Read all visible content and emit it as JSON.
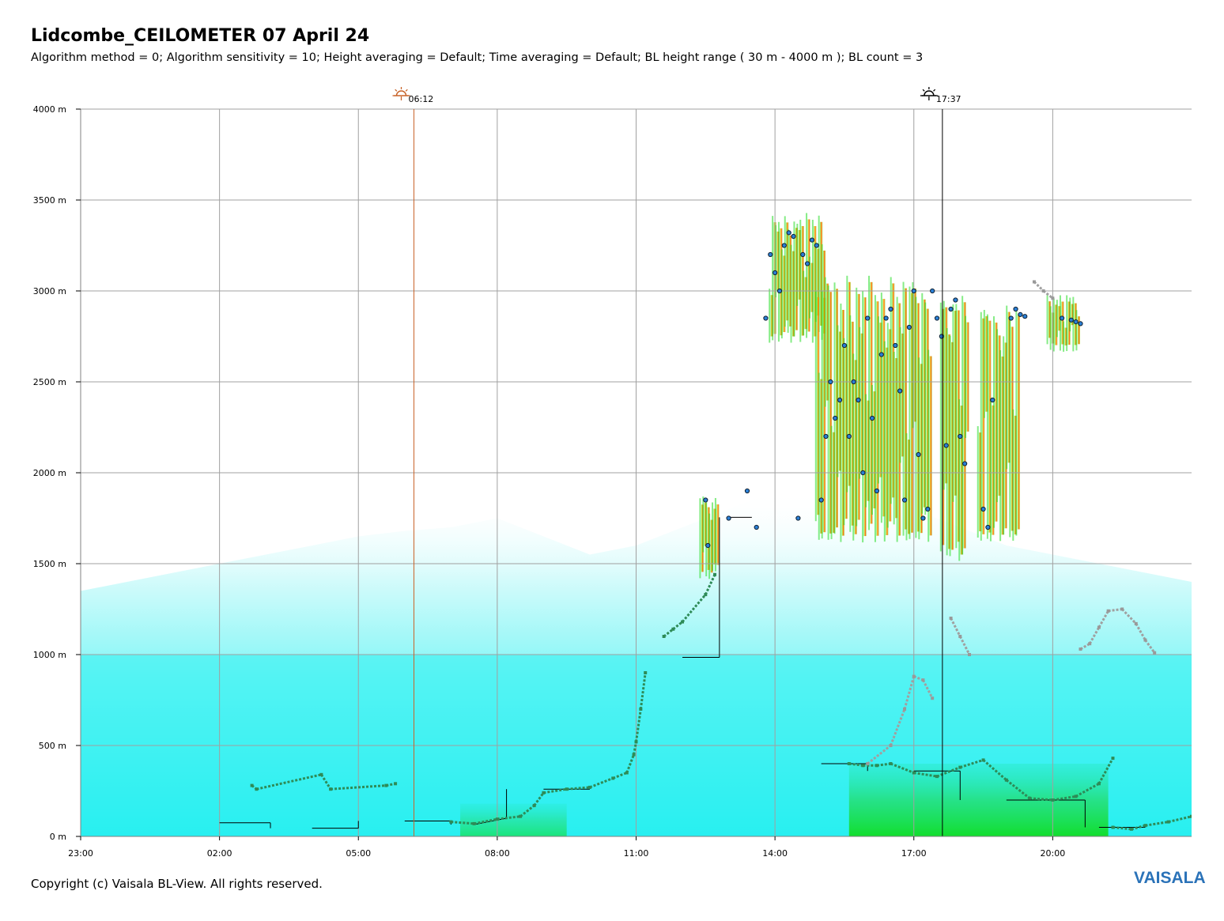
{
  "title": "Lidcombe_CEILOMETER 07 April 24",
  "subtitle": "Algorithm method = 0; Algorithm sensitivity = 10; Height averaging = Default; Time averaging = Default; BL height range ( 30 m - 4000 m ); BL count = 3",
  "copyright": "Copyright (c) Vaisala BL-View. All rights reserved.",
  "brand": "VAISALA",
  "colors": {
    "background_backscatter": "#33f2f2",
    "grid": "#a0a0a0",
    "sunrise_line": "#c8642a",
    "sunset_line": "#000000",
    "cloud_hits": "#2a7fd6",
    "bl_markers": "#2e8b57",
    "high_signal": "#ff2200",
    "mid_signal": "#22dd22"
  },
  "chart_data": {
    "type": "heatmap",
    "x_label_unit": "time (hours, starting 23:00 previous day)",
    "x_range": [
      -1,
      23
    ],
    "x_tick_values": [
      -1,
      2,
      5,
      8,
      11,
      14,
      17,
      20
    ],
    "x_tick_labels": [
      "23:00",
      "02:00",
      "05:00",
      "08:00",
      "11:00",
      "14:00",
      "17:00",
      "20:00"
    ],
    "y_range": [
      0,
      4000
    ],
    "y_tick_values": [
      0,
      500,
      1000,
      1500,
      2000,
      2500,
      3000,
      3500,
      4000
    ],
    "y_tick_labels": [
      "0 m",
      "500 m",
      "1000 m",
      "1500 m",
      "2000 m",
      "2500 m",
      "3000 m",
      "3500 m",
      "4000 m"
    ],
    "grid": true,
    "sunrise": {
      "time": 6.2,
      "label": "06:12",
      "icon": "sunrise-icon"
    },
    "sunset": {
      "time": 17.617,
      "label": "17:37",
      "icon": "sunset-icon"
    },
    "boundary_layer_height_steps": [
      {
        "x": 2.0,
        "y": 75
      },
      {
        "x": 3.1,
        "y": 75
      },
      {
        "x": 4.0,
        "y": 45
      },
      {
        "x": 5.0,
        "y": 45
      },
      {
        "x": 6.0,
        "y": 85
      },
      {
        "x": 7.0,
        "y": 85
      },
      {
        "x": 7.5,
        "y": 65
      },
      {
        "x": 8.2,
        "y": 100
      },
      {
        "x": 9.0,
        "y": 260
      },
      {
        "x": 10.0,
        "y": 260
      },
      {
        "x": 12.0,
        "y": 985
      },
      {
        "x": 12.8,
        "y": 985
      },
      {
        "x": 13.0,
        "y": 1755
      },
      {
        "x": 13.5,
        "y": 1755
      },
      {
        "x": 15.0,
        "y": 400
      },
      {
        "x": 16.0,
        "y": 400
      },
      {
        "x": 17.0,
        "y": 360
      },
      {
        "x": 18.0,
        "y": 360
      },
      {
        "x": 19.0,
        "y": 200
      },
      {
        "x": 20.7,
        "y": 200
      },
      {
        "x": 21.0,
        "y": 50
      },
      {
        "x": 22.0,
        "y": 50
      }
    ],
    "bl_marker_series": [
      {
        "x": [
          2.7,
          2.8,
          4.2,
          4.4,
          5.6,
          5.8
        ],
        "y": [
          280,
          260,
          340,
          260,
          280,
          290
        ]
      },
      {
        "x": [
          7.0,
          7.5,
          8.0,
          8.5,
          8.8,
          9.0,
          9.5,
          10.0,
          10.5,
          10.8,
          10.95,
          11.0,
          11.1,
          11.2
        ],
        "y": [
          80,
          70,
          95,
          110,
          170,
          240,
          260,
          270,
          320,
          350,
          450,
          520,
          700,
          900
        ]
      },
      {
        "x": [
          11.6,
          11.8,
          12.0,
          12.5,
          12.7
        ],
        "y": [
          1100,
          1140,
          1180,
          1330,
          1440
        ]
      },
      {
        "x": [
          15.6,
          15.9,
          16.2,
          16.5,
          17.0,
          17.5,
          18.0,
          18.5,
          19.0,
          19.5,
          20.0,
          20.5,
          21.0,
          21.3
        ],
        "y": [
          400,
          390,
          390,
          400,
          350,
          330,
          380,
          420,
          310,
          210,
          200,
          220,
          290,
          430
        ]
      },
      {
        "x": [
          21.3,
          21.7,
          22.0,
          22.5,
          23.0
        ],
        "y": [
          50,
          40,
          60,
          80,
          110
        ]
      }
    ],
    "residual_layer_series": [
      {
        "x": [
          16.0,
          16.5,
          16.8,
          17.0,
          17.2,
          17.4
        ],
        "y": [
          400,
          500,
          700,
          880,
          860,
          760
        ]
      },
      {
        "x": [
          17.8,
          18.0,
          18.2
        ],
        "y": [
          1200,
          1100,
          1000
        ]
      },
      {
        "x": [
          19.6,
          19.8,
          20.0
        ],
        "y": [
          3050,
          3000,
          2960
        ]
      },
      {
        "x": [
          20.6,
          20.8,
          21.0,
          21.2,
          21.5,
          21.8,
          22.0,
          22.2
        ],
        "y": [
          1030,
          1060,
          1150,
          1240,
          1250,
          1170,
          1080,
          1010
        ]
      }
    ],
    "cloud_base_points": {
      "x": [
        12.5,
        12.55,
        13.0,
        13.4,
        13.6,
        13.8,
        13.9,
        14.0,
        14.1,
        14.2,
        14.3,
        14.4,
        14.5,
        14.6,
        14.7,
        14.8,
        14.9,
        15.0,
        15.1,
        15.2,
        15.3,
        15.4,
        15.5,
        15.6,
        15.7,
        15.8,
        15.9,
        16.0,
        16.1,
        16.2,
        16.3,
        16.4,
        16.5,
        16.6,
        16.7,
        16.8,
        16.9,
        17.0,
        17.1,
        17.2,
        17.3,
        17.4,
        17.5,
        17.6,
        17.7,
        17.8,
        17.9,
        18.0,
        18.1,
        18.5,
        18.6,
        18.7,
        19.1,
        19.2,
        19.3,
        19.4,
        20.2,
        20.4,
        20.5,
        20.6
      ],
      "y": [
        1850,
        1600,
        1750,
        1900,
        1700,
        2850,
        3200,
        3100,
        3000,
        3250,
        3320,
        3300,
        1750,
        3200,
        3150,
        3280,
        3250,
        1850,
        2200,
        2500,
        2300,
        2400,
        2700,
        2200,
        2500,
        2400,
        2000,
        2850,
        2300,
        1900,
        2650,
        2850,
        2900,
        2700,
        2450,
        1850,
        2800,
        3000,
        2100,
        1750,
        1800,
        3000,
        2850,
        2750,
        2150,
        2900,
        2950,
        2200,
        2050,
        1800,
        1700,
        2400,
        2850,
        2900,
        2870,
        2860,
        2850,
        2840,
        2830,
        2820
      ]
    },
    "high_signal_regions": [
      {
        "x": [
          13.9,
          15.1
        ],
        "y": [
          2750,
          3400
        ]
      },
      {
        "x": [
          14.9,
          17.4
        ],
        "y": [
          1650,
          3050
        ]
      },
      {
        "x": [
          17.6,
          18.2
        ],
        "y": [
          1550,
          3000
        ]
      },
      {
        "x": [
          18.4,
          19.3
        ],
        "y": [
          1650,
          2900
        ]
      },
      {
        "x": [
          19.9,
          20.6
        ],
        "y": [
          2700,
          2950
        ]
      },
      {
        "x": [
          12.4,
          12.8
        ],
        "y": [
          1450,
          1850
        ]
      }
    ],
    "mid_signal_region": {
      "x": [
        15.6,
        21.2
      ],
      "y": [
        0,
        400
      ]
    }
  }
}
